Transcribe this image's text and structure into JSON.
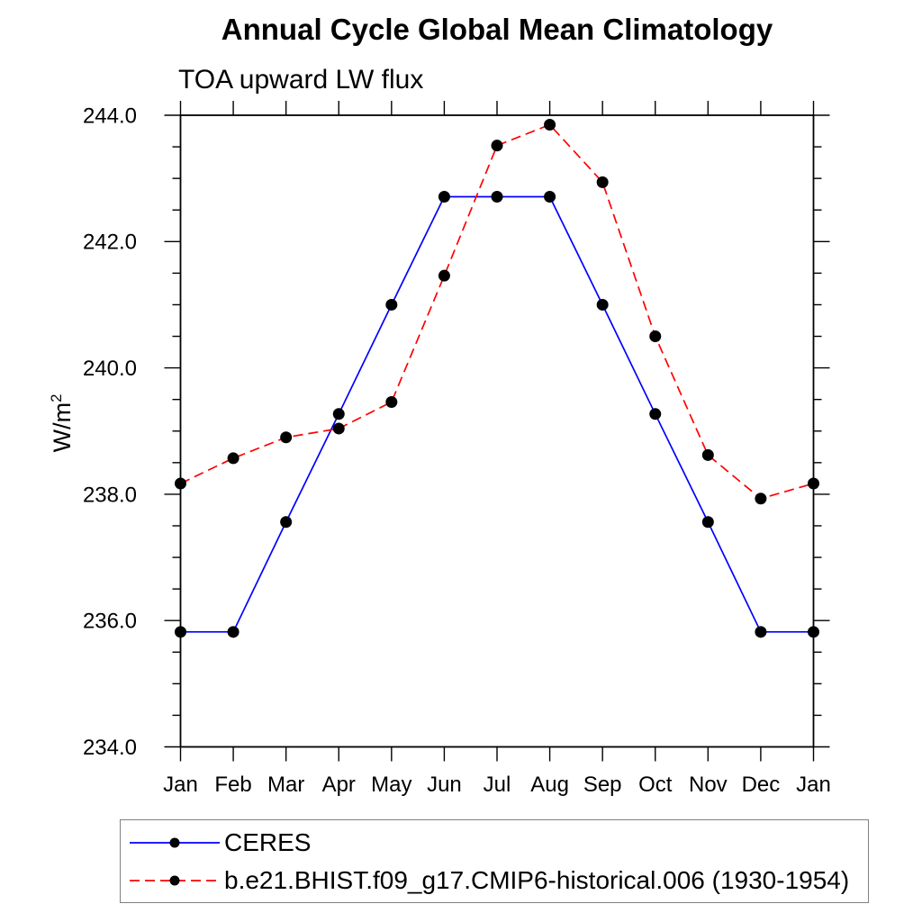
{
  "chart_data": {
    "type": "line",
    "title": "Annual Cycle Global Mean Climatology",
    "subtitle": "TOA upward LW flux",
    "ylabel_base": "W/m",
    "ylabel_exponent": "2",
    "xlabel": "",
    "x_categories": [
      "Jan",
      "Feb",
      "Mar",
      "Apr",
      "May",
      "Jun",
      "Jul",
      "Aug",
      "Sep",
      "Oct",
      "Nov",
      "Dec",
      "Jan"
    ],
    "ylim": [
      234.0,
      244.0
    ],
    "y_major_ticks": [
      234.0,
      236.0,
      238.0,
      240.0,
      242.0,
      244.0
    ],
    "y_tick_labels": [
      "234.0",
      "236.0",
      "238.0",
      "240.0",
      "242.0",
      "244.0"
    ],
    "y_minor_step": 0.5,
    "grid": "off",
    "legend_position": "below-left",
    "marker": {
      "shape": "filled-circle",
      "color": "#000000"
    },
    "series": [
      {
        "name": "CERES",
        "color": "#0000ff",
        "line_style": "solid",
        "values": [
          235.82,
          235.82,
          237.56,
          239.27,
          241.0,
          242.71,
          242.71,
          242.71,
          241.0,
          239.27,
          237.56,
          235.82,
          235.82
        ]
      },
      {
        "name": "b.e21.BHIST.f09_g17.CMIP6-historical.006 (1930-1954)",
        "color": "#ff0000",
        "line_style": "dashed",
        "values": [
          238.17,
          238.57,
          238.9,
          239.04,
          239.46,
          241.46,
          243.52,
          243.85,
          242.94,
          240.5,
          238.62,
          237.93,
          238.17
        ]
      }
    ]
  }
}
